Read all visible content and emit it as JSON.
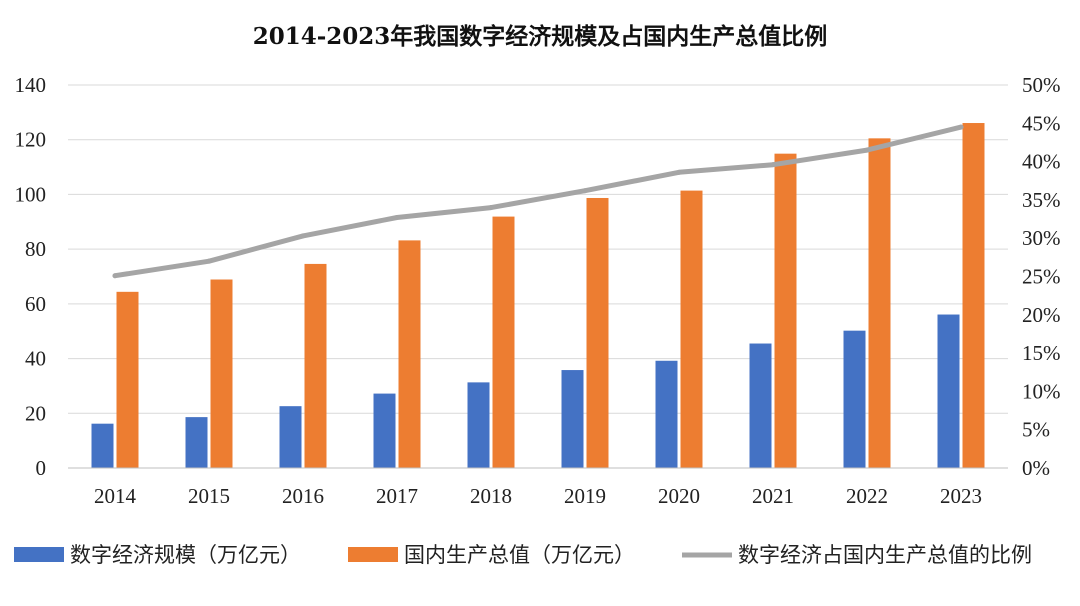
{
  "chart_data": {
    "type": "bar",
    "title": "2014-2023年我国数字经济规模及占国内生产总值比例",
    "categories": [
      "2014",
      "2015",
      "2016",
      "2017",
      "2018",
      "2019",
      "2020",
      "2021",
      "2022",
      "2023"
    ],
    "series": [
      {
        "name": "数字经济规模（万亿元）",
        "kind": "bar",
        "axis": "left",
        "color": "#4472C4",
        "values": [
          16.2,
          18.6,
          22.6,
          27.2,
          31.3,
          35.8,
          39.2,
          45.5,
          50.2,
          56.1
        ]
      },
      {
        "name": "国内生产总值（万亿元）",
        "kind": "bar",
        "axis": "left",
        "color": "#ED7D31",
        "values": [
          64.4,
          68.9,
          74.6,
          83.2,
          91.9,
          98.7,
          101.4,
          114.9,
          120.5,
          126.1
        ]
      },
      {
        "name": "数字经济占国内生产总值的比例",
        "kind": "line",
        "axis": "right",
        "color": "#A5A5A5",
        "values": [
          25.1,
          27.0,
          30.3,
          32.7,
          34.0,
          36.2,
          38.6,
          39.6,
          41.5,
          44.5
        ]
      }
    ],
    "y_left": {
      "min": 0,
      "max": 140,
      "step": 20,
      "ticks": [
        "0",
        "20",
        "40",
        "60",
        "80",
        "100",
        "120",
        "140"
      ]
    },
    "y_right": {
      "min": 0,
      "max": 50,
      "step": 5,
      "ticks": [
        "0%",
        "5%",
        "10%",
        "15%",
        "20%",
        "25%",
        "30%",
        "35%",
        "40%",
        "45%",
        "50%"
      ]
    },
    "grid": true,
    "legend_position": "bottom"
  }
}
